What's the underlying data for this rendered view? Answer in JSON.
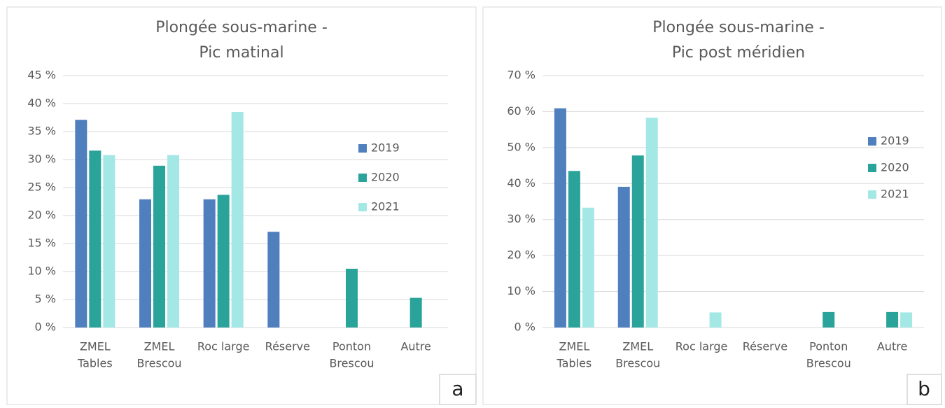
{
  "chart_data": [
    {
      "type": "bar",
      "title": [
        "Plongée sous-marine -",
        "Pic matinal"
      ],
      "panel_label": "a",
      "categories": [
        [
          "ZMEL",
          "Tables"
        ],
        [
          "ZMEL",
          "Brescou"
        ],
        [
          "Roc large"
        ],
        [
          "Réserve"
        ],
        [
          "Ponton",
          "Brescou"
        ],
        [
          "Autre"
        ]
      ],
      "series": [
        {
          "name": "2019",
          "color": "#4f7fbd",
          "values": [
            37.1,
            22.9,
            22.9,
            17.1,
            0,
            0
          ]
        },
        {
          "name": "2020",
          "color": "#2aa39b",
          "values": [
            31.6,
            28.9,
            23.7,
            0,
            10.5,
            5.3
          ]
        },
        {
          "name": "2021",
          "color": "#a3e8e5",
          "values": [
            30.8,
            30.8,
            38.5,
            0,
            0,
            0
          ]
        }
      ],
      "ylim": [
        0,
        45
      ],
      "yticks": [
        {
          "value": 0,
          "label": "0 %"
        },
        {
          "value": 5,
          "label": "5 %"
        },
        {
          "value": 10,
          "label": "10 %"
        },
        {
          "value": 15,
          "label": "15 %"
        },
        {
          "value": 20,
          "label": "20 %"
        },
        {
          "value": 25,
          "label": "25 %"
        },
        {
          "value": 30,
          "label": "30 %"
        },
        {
          "value": 35,
          "label": "35 %"
        },
        {
          "value": 40,
          "label": "40 %"
        },
        {
          "value": 45,
          "label": "45 %"
        }
      ],
      "grid": true
    },
    {
      "type": "bar",
      "title": [
        "Plongée sous-marine -",
        "Pic post méridien"
      ],
      "panel_label": "b",
      "categories": [
        [
          "ZMEL",
          "Tables"
        ],
        [
          "ZMEL",
          "Brescou"
        ],
        [
          "Roc large"
        ],
        [
          "Réserve"
        ],
        [
          "Ponton",
          "Brescou"
        ],
        [
          "Autre"
        ]
      ],
      "series": [
        {
          "name": "2019",
          "color": "#4f7fbd",
          "values": [
            60.9,
            39.1,
            0,
            0,
            0,
            0
          ]
        },
        {
          "name": "2020",
          "color": "#2aa39b",
          "values": [
            43.5,
            47.8,
            0,
            0,
            4.3,
            4.3
          ]
        },
        {
          "name": "2021",
          "color": "#a3e8e5",
          "values": [
            33.3,
            58.3,
            4.2,
            0,
            0,
            4.2
          ]
        }
      ],
      "ylim": [
        0,
        70
      ],
      "yticks": [
        {
          "value": 0,
          "label": "0 %"
        },
        {
          "value": 10,
          "label": "10 %"
        },
        {
          "value": 20,
          "label": "20 %"
        },
        {
          "value": 30,
          "label": "30 %"
        },
        {
          "value": 40,
          "label": "40 %"
        },
        {
          "value": 50,
          "label": "50 %"
        },
        {
          "value": 60,
          "label": "60 %"
        },
        {
          "value": 70,
          "label": "70 %"
        }
      ],
      "grid": true
    }
  ]
}
